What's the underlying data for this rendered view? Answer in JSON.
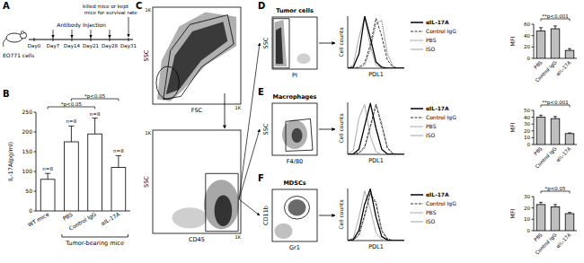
{
  "panel_labels": [
    "A",
    "B",
    "C",
    "D",
    "E",
    "F"
  ],
  "schematic": {
    "cells": "EO771 cells",
    "injection": "Antibody Injection",
    "days": [
      "Day0",
      "Day7",
      "Day14",
      "Day21",
      "Day28",
      "Day31"
    ],
    "endpoint": "killed mice or kept mice for survival rate"
  },
  "flow_plots": [
    {
      "x_label": "FSC",
      "y_label": "SSC",
      "tick_label": "1K"
    },
    {
      "x_label": "CD45",
      "y_label": "SSC",
      "tick_label": "1K"
    },
    {
      "title": "Tumor cells",
      "x_label": "PI",
      "y_label": "SSC"
    },
    {
      "title": "Macrophages",
      "x_label": "F4/80",
      "y_label": "SSC"
    },
    {
      "title": "MDSCs",
      "x_label": "Gr1",
      "y_label": "CD11b"
    }
  ],
  "chart_data": [
    {
      "type": "bar",
      "y_label": "IL-17A(pg/ml)",
      "categories": [
        "WT mice",
        "PBS",
        "Control IgG",
        "αIL-17A"
      ],
      "values": [
        80,
        175,
        195,
        110
      ],
      "errors": [
        15,
        40,
        40,
        30
      ],
      "n_labels": [
        "n=8",
        "n=8",
        "n=8",
        "n=8"
      ],
      "group_label": "Tumor-bearing mice",
      "annotations": [
        "*p<0.05",
        "*p<0.05"
      ],
      "color": "#ffffff",
      "ylim": [
        0,
        250
      ],
      "yticks": [
        0,
        50,
        100,
        150,
        200,
        250
      ]
    },
    {
      "type": "line",
      "x_label": "PDL1",
      "y_label": "Cell counts",
      "x": [
        0,
        1,
        2,
        3,
        4,
        5,
        6,
        7,
        8,
        9,
        10
      ],
      "xlim": [
        0,
        10
      ],
      "ylim": [
        0,
        100
      ],
      "tick_labels": false,
      "legend": "right",
      "series": [
        {
          "name": "αIL-17A",
          "color": "#000000",
          "line_style": "solid",
          "values": [
            0,
            2,
            28,
            100,
            58,
            12,
            2,
            0,
            0,
            0,
            0
          ]
        },
        {
          "name": "Control IgG",
          "color": "#333333",
          "line_style": "dashed",
          "values": [
            0,
            0,
            2,
            10,
            45,
            96,
            62,
            16,
            2,
            0,
            0
          ]
        },
        {
          "name": "PBS",
          "color": "#444444",
          "line_style": "dotted",
          "values": [
            0,
            0,
            1,
            6,
            36,
            86,
            92,
            28,
            4,
            0,
            0
          ]
        },
        {
          "name": "ISO",
          "color": "#aaaaaa",
          "line_style": "solid",
          "values": [
            0,
            6,
            60,
            98,
            42,
            6,
            1,
            0,
            0,
            0,
            0
          ]
        }
      ]
    },
    {
      "type": "bar",
      "y_label": "MFI",
      "categories": [
        "PBS",
        "Control IgG",
        "αIL-17A"
      ],
      "values": [
        48,
        52,
        14
      ],
      "errors": [
        6,
        5,
        3
      ],
      "annotations": [
        "**p<0.001"
      ],
      "color": "#bfbfbf",
      "ylim": [
        0,
        60
      ],
      "yticks": [
        0,
        20,
        40,
        60
      ]
    },
    {
      "type": "line",
      "x_label": "PDL1",
      "y_label": "Cell counts",
      "x": [
        0,
        1,
        2,
        3,
        4,
        5,
        6,
        7,
        8,
        9,
        10
      ],
      "xlim": [
        0,
        10
      ],
      "ylim": [
        0,
        100
      ],
      "tick_labels": false,
      "legend": "right",
      "series": [
        {
          "name": "αIL-17A",
          "color": "#000000",
          "line_style": "solid",
          "values": [
            0,
            1,
            10,
            55,
            98,
            50,
            10,
            1,
            0,
            0,
            0
          ]
        },
        {
          "name": "Control IgG",
          "color": "#333333",
          "line_style": "dashed",
          "values": [
            0,
            0,
            3,
            15,
            55,
            95,
            55,
            12,
            1,
            0,
            0
          ]
        },
        {
          "name": "PBS",
          "color": "#444444",
          "line_style": "dotted",
          "values": [
            0,
            0,
            2,
            12,
            50,
            97,
            60,
            14,
            2,
            0,
            0
          ]
        },
        {
          "name": "ISO",
          "color": "#aaaaaa",
          "line_style": "solid",
          "values": [
            0,
            8,
            70,
            96,
            35,
            5,
            0,
            0,
            0,
            0,
            0
          ]
        }
      ]
    },
    {
      "type": "bar",
      "y_label": "MFI",
      "categories": [
        "PBS",
        "Control IgG",
        "αIL-17A"
      ],
      "values": [
        40,
        38,
        16
      ],
      "errors": [
        3,
        3,
        1
      ],
      "annotations": [
        "**p<0.001"
      ],
      "color": "#bfbfbf",
      "ylim": [
        0,
        50
      ],
      "yticks": [
        0,
        10,
        20,
        30,
        40,
        50
      ]
    },
    {
      "type": "line",
      "x_label": "PDL1",
      "y_label": "Cell counts",
      "x": [
        0,
        1,
        2,
        3,
        4,
        5,
        6,
        7,
        8,
        9,
        10
      ],
      "xlim": [
        0,
        10
      ],
      "ylim": [
        0,
        100
      ],
      "tick_labels": false,
      "legend": "right",
      "series": [
        {
          "name": "αIL-17A",
          "color": "#000000",
          "line_style": "solid",
          "values": [
            0,
            2,
            20,
            70,
            99,
            45,
            8,
            1,
            0,
            0,
            0
          ]
        },
        {
          "name": "Control IgG",
          "color": "#333333",
          "line_style": "dashed",
          "values": [
            0,
            1,
            12,
            50,
            92,
            70,
            18,
            3,
            0,
            0,
            0
          ]
        },
        {
          "name": "PBS",
          "color": "#444444",
          "line_style": "dotted",
          "values": [
            0,
            1,
            10,
            45,
            90,
            75,
            22,
            4,
            0,
            0,
            0
          ]
        },
        {
          "name": "ISO",
          "color": "#aaaaaa",
          "line_style": "solid",
          "values": [
            0,
            5,
            45,
            95,
            60,
            15,
            2,
            0,
            0,
            0,
            0
          ]
        }
      ]
    },
    {
      "type": "bar",
      "y_label": "MFI",
      "categories": [
        "PBS",
        "Control IgG",
        "αIL-17A"
      ],
      "values": [
        23,
        21,
        15
      ],
      "errors": [
        2,
        2,
        1
      ],
      "annotations": [
        "*p<0.05"
      ],
      "color": "#bfbfbf",
      "ylim": [
        0,
        30
      ],
      "yticks": [
        0,
        10,
        20,
        30
      ]
    }
  ]
}
